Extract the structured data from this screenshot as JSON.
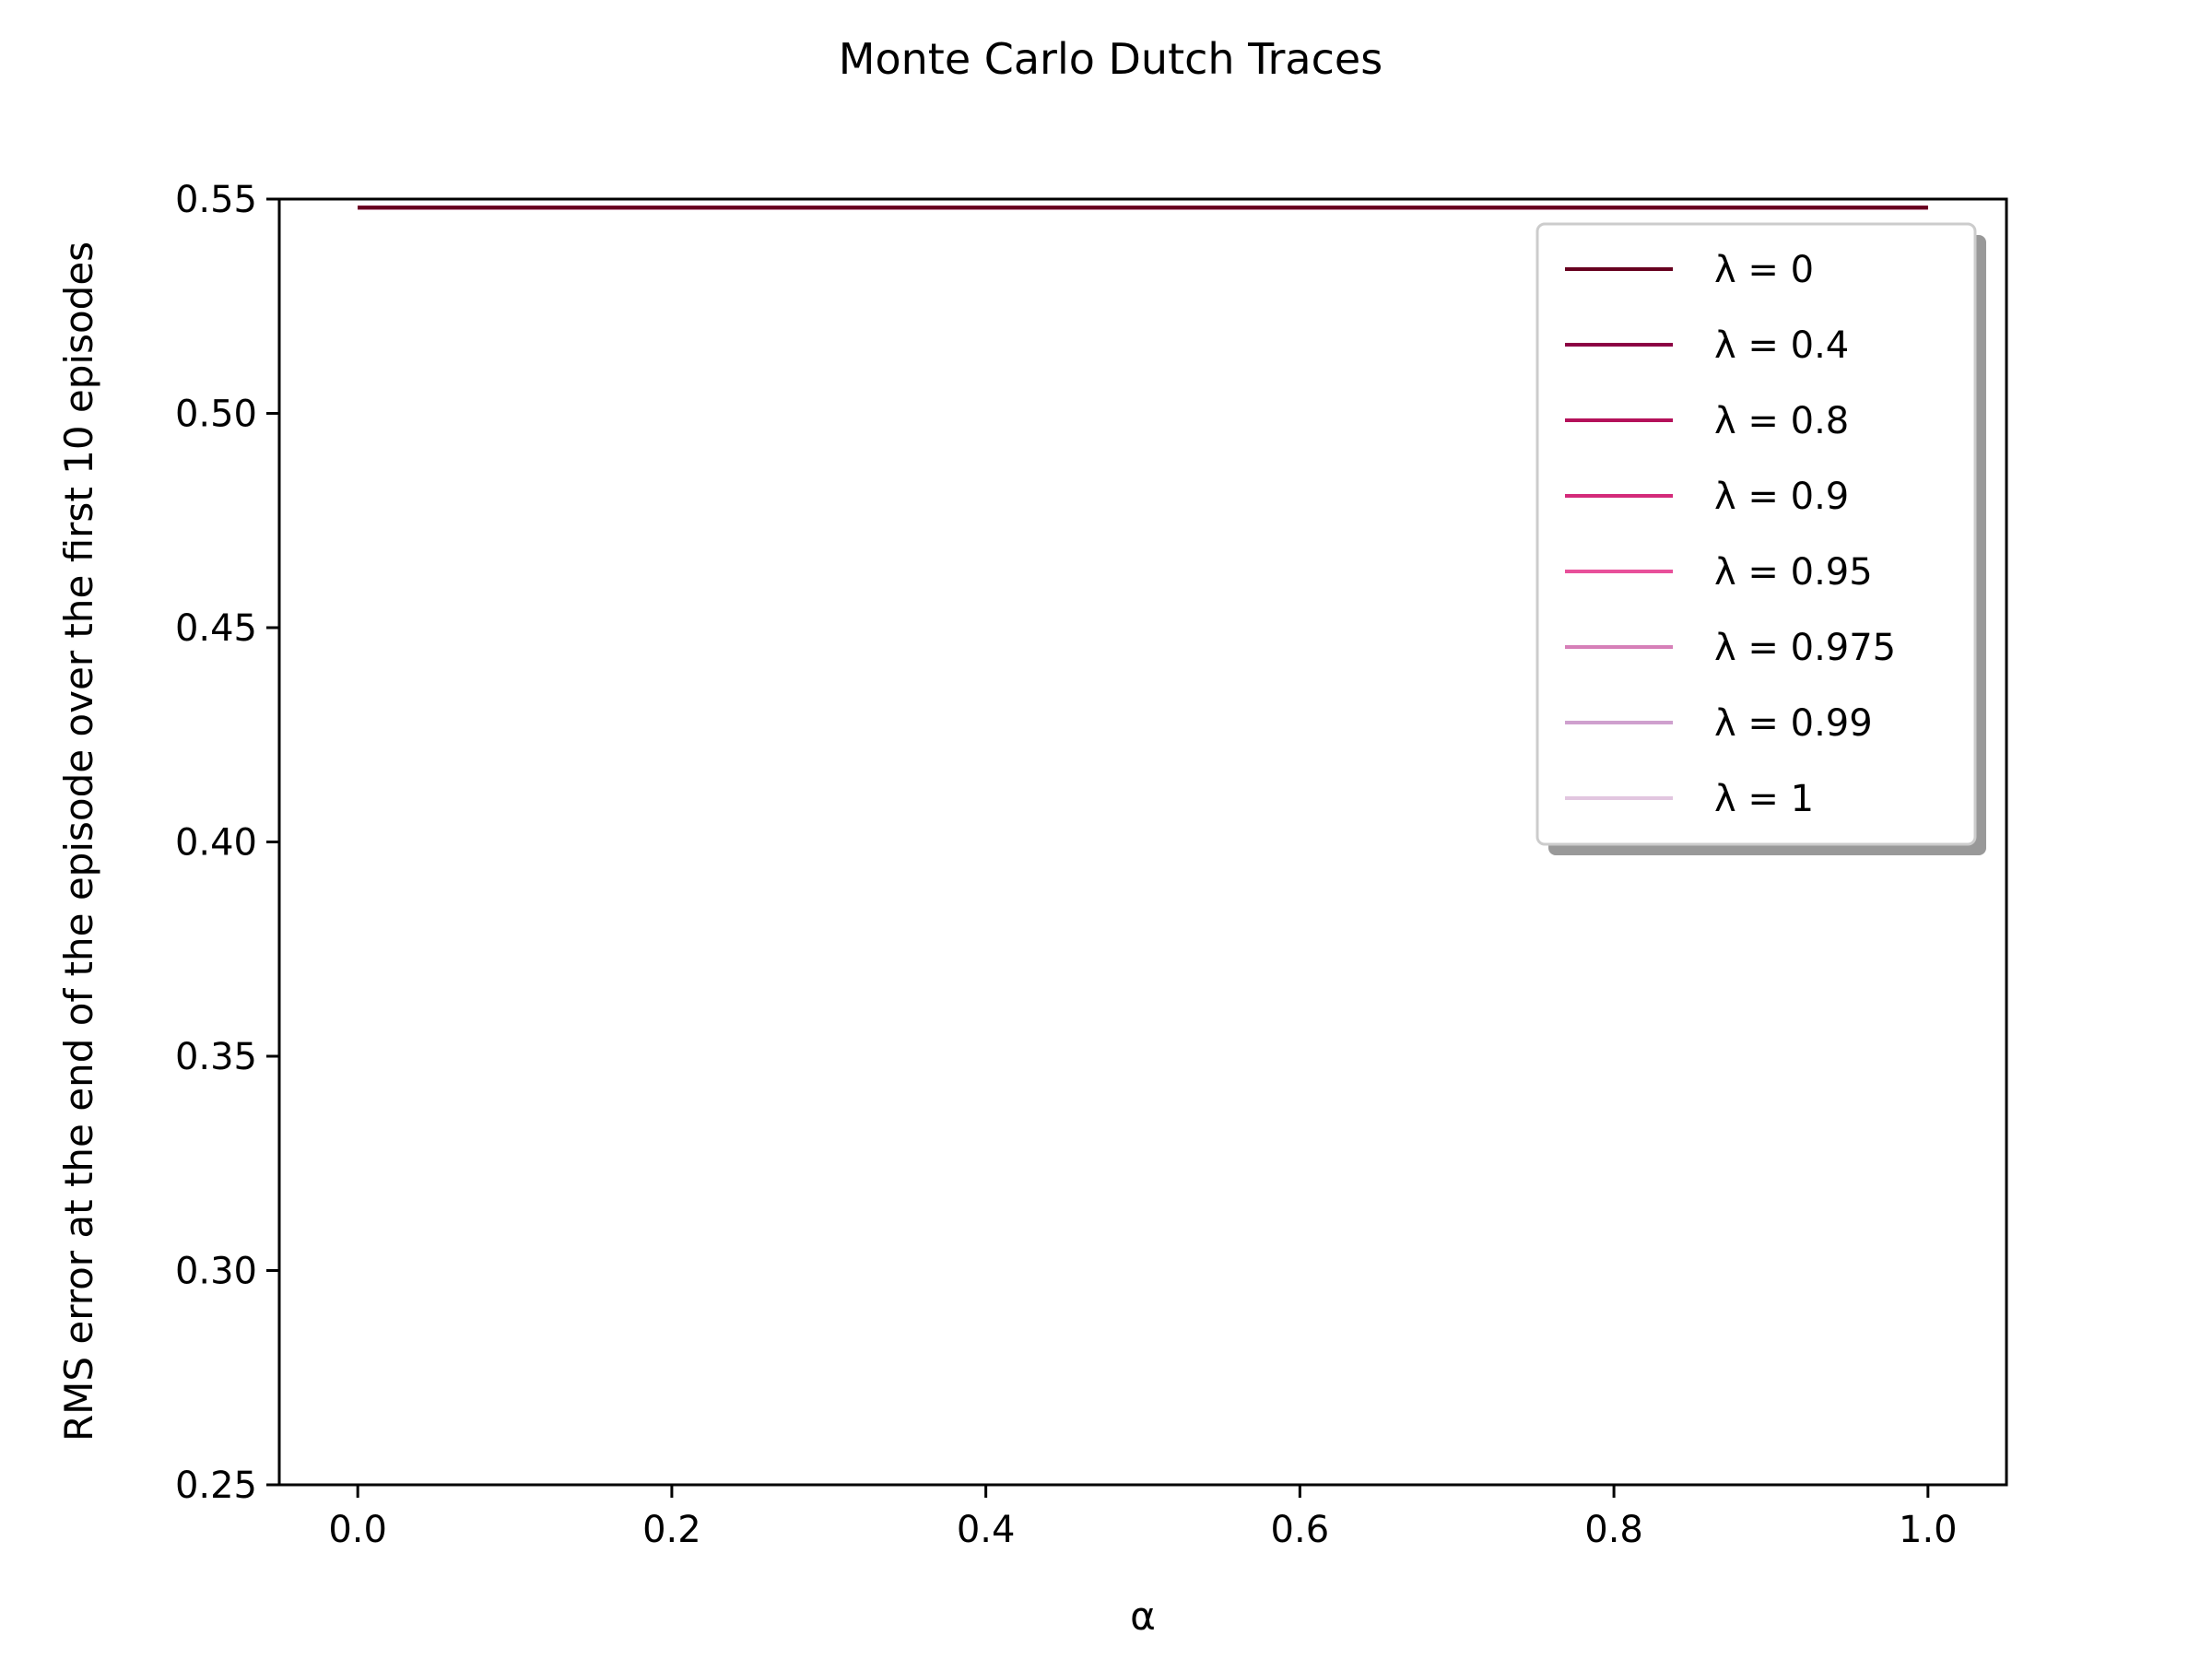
{
  "chart_data": {
    "type": "line",
    "title": "Monte Carlo Dutch Traces",
    "xlabel": "α",
    "ylabel": "RMS error at the end of the episode over the first 10 episodes",
    "xlim": [
      -0.05,
      1.05
    ],
    "ylim": [
      0.25,
      0.55
    ],
    "xticks": [
      0.0,
      0.2,
      0.4,
      0.6,
      0.8,
      1.0
    ],
    "xtick_labels": [
      "0.0",
      "0.2",
      "0.4",
      "0.6",
      "0.8",
      "1.0"
    ],
    "yticks": [
      0.25,
      0.3,
      0.35,
      0.4,
      0.45,
      0.5,
      0.55
    ],
    "ytick_labels": [
      "0.25",
      "0.30",
      "0.35",
      "0.40",
      "0.45",
      "0.50",
      "0.55"
    ],
    "grid": false,
    "legend": {
      "position": "upper right",
      "shadow": true
    },
    "series": [
      {
        "name": "λ = 0",
        "color": "#67001f",
        "x": [
          0.0,
          1.0
        ],
        "y": [
          0.548,
          0.548
        ]
      },
      {
        "name": "λ = 0.4",
        "color": "#8c0044",
        "x": [
          0.0,
          1.0
        ],
        "y": [
          0.548,
          0.548
        ]
      },
      {
        "name": "λ = 0.8",
        "color": "#b4115a",
        "x": [
          0.0,
          1.0
        ],
        "y": [
          0.548,
          0.548
        ]
      },
      {
        "name": "λ = 0.9",
        "color": "#d42a7a",
        "x": [
          0.0,
          1.0
        ],
        "y": [
          0.548,
          0.548
        ]
      },
      {
        "name": "λ = 0.95",
        "color": "#e8509a",
        "x": [
          0.0,
          0.85
        ],
        "y": [
          0.548,
          0.548
        ]
      },
      {
        "name": "λ = 0.975",
        "color": "#d67fb8",
        "x": [
          0.0,
          0.35
        ],
        "y": [
          0.548,
          0.548
        ]
      },
      {
        "name": "λ = 0.99",
        "color": "#cfa0ce",
        "x": [
          0.0,
          0.1
        ],
        "y": [
          0.548,
          0.548
        ]
      },
      {
        "name": "λ = 1",
        "color": "#e2c6e0",
        "x": [
          0.0,
          0.1
        ],
        "y": [
          0.548,
          0.548
        ]
      }
    ]
  }
}
